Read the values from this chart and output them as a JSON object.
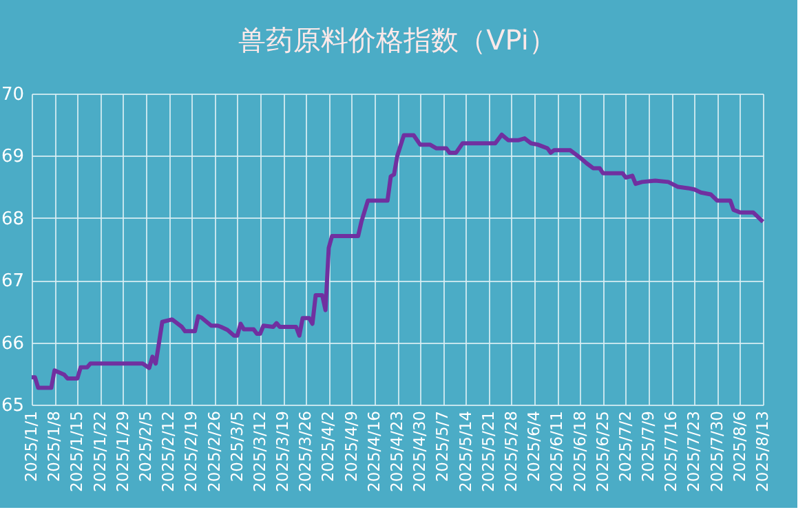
{
  "chart_data": {
    "type": "line",
    "title": "兽药原料价格指数（VPi）",
    "x": [
      "2025-01-01",
      "2025-01-02",
      "2025-01-03",
      "2025-01-07",
      "2025-01-08",
      "2025-01-11",
      "2025-01-12",
      "2025-01-15",
      "2025-01-16",
      "2025-01-18",
      "2025-01-19",
      "2025-02-04",
      "2025-02-06",
      "2025-02-07",
      "2025-02-08",
      "2025-02-10",
      "2025-02-13",
      "2025-02-16",
      "2025-02-17",
      "2025-02-20",
      "2025-02-21",
      "2025-02-22",
      "2025-02-25",
      "2025-02-27",
      "2025-02-28",
      "2025-03-02",
      "2025-03-04",
      "2025-03-05",
      "2025-03-06",
      "2025-03-07",
      "2025-03-10",
      "2025-03-11",
      "2025-03-12",
      "2025-03-13",
      "2025-03-16",
      "2025-03-17",
      "2025-03-18",
      "2025-03-23",
      "2025-03-24",
      "2025-03-25",
      "2025-03-27",
      "2025-03-28",
      "2025-03-29",
      "2025-03-31",
      "2025-04-01",
      "2025-04-02",
      "2025-04-03",
      "2025-04-11",
      "2025-04-12",
      "2025-04-14",
      "2025-04-20",
      "2025-04-21",
      "2025-04-22",
      "2025-04-23",
      "2025-04-25",
      "2025-04-28",
      "2025-04-30",
      "2025-05-03",
      "2025-05-05",
      "2025-05-08",
      "2025-05-09",
      "2025-05-11",
      "2025-05-13",
      "2025-05-23",
      "2025-05-25",
      "2025-05-27",
      "2025-05-30",
      "2025-06-01",
      "2025-06-03",
      "2025-06-05",
      "2025-06-08",
      "2025-06-09",
      "2025-06-10",
      "2025-06-15",
      "2025-06-18",
      "2025-06-20",
      "2025-06-22",
      "2025-06-24",
      "2025-06-25",
      "2025-07-01",
      "2025-07-02",
      "2025-07-04",
      "2025-07-05",
      "2025-07-07",
      "2025-07-11",
      "2025-07-15",
      "2025-07-18",
      "2025-07-21",
      "2025-07-23",
      "2025-07-25",
      "2025-07-28",
      "2025-07-30",
      "2025-08-03",
      "2025-08-04",
      "2025-08-06",
      "2025-08-10",
      "2025-08-11",
      "2025-08-13"
    ],
    "series": [
      {
        "color": "#7030a0",
        "values": [
          65.44,
          65.44,
          65.27,
          65.27,
          65.55,
          65.48,
          65.42,
          65.42,
          65.6,
          65.6,
          65.66,
          65.66,
          65.59,
          65.77,
          65.66,
          66.33,
          66.37,
          66.25,
          66.18,
          66.18,
          66.42,
          66.4,
          66.27,
          66.27,
          66.25,
          66.2,
          66.11,
          66.11,
          66.3,
          66.21,
          66.21,
          66.14,
          66.14,
          66.27,
          66.25,
          66.31,
          66.25,
          66.25,
          66.11,
          66.39,
          66.39,
          66.3,
          66.76,
          66.76,
          66.52,
          67.52,
          67.71,
          67.71,
          67.94,
          68.28,
          68.28,
          68.67,
          68.7,
          69.0,
          69.33,
          69.33,
          69.18,
          69.18,
          69.12,
          69.12,
          69.05,
          69.05,
          69.2,
          69.2,
          69.34,
          69.25,
          69.25,
          69.28,
          69.2,
          69.18,
          69.12,
          69.05,
          69.09,
          69.09,
          68.97,
          68.88,
          68.8,
          68.8,
          68.72,
          68.72,
          68.65,
          68.68,
          68.55,
          68.58,
          68.6,
          68.58,
          68.5,
          68.48,
          68.46,
          68.41,
          68.38,
          68.28,
          68.28,
          68.13,
          68.09,
          68.09,
          68.04,
          67.94
        ]
      }
    ],
    "xlim": [
      "2025-01-01",
      "2025-08-13"
    ],
    "xticks": [
      {
        "value": "2025-01-01",
        "label": "2025/1/1"
      },
      {
        "value": "2025-01-08",
        "label": "2025/1/8"
      },
      {
        "value": "2025-01-15",
        "label": "2025/1/15"
      },
      {
        "value": "2025-01-22",
        "label": "2025/1/22"
      },
      {
        "value": "2025-01-29",
        "label": "2025/1/29"
      },
      {
        "value": "2025-02-05",
        "label": "2025/2/5"
      },
      {
        "value": "2025-02-12",
        "label": "2025/2/12"
      },
      {
        "value": "2025-02-19",
        "label": "2025/2/19"
      },
      {
        "value": "2025-02-26",
        "label": "2025/2/26"
      },
      {
        "value": "2025-03-05",
        "label": "2025/3/5"
      },
      {
        "value": "2025-03-12",
        "label": "2025/3/12"
      },
      {
        "value": "2025-03-19",
        "label": "2025/3/19"
      },
      {
        "value": "2025-03-26",
        "label": "2025/3/26"
      },
      {
        "value": "2025-04-02",
        "label": "2025/4/2"
      },
      {
        "value": "2025-04-09",
        "label": "2025/4/9"
      },
      {
        "value": "2025-04-16",
        "label": "2025/4/16"
      },
      {
        "value": "2025-04-23",
        "label": "2025/4/23"
      },
      {
        "value": "2025-04-30",
        "label": "2025/4/30"
      },
      {
        "value": "2025-05-07",
        "label": "2025/5/7"
      },
      {
        "value": "2025-05-14",
        "label": "2025/5/14"
      },
      {
        "value": "2025-05-21",
        "label": "2025/5/21"
      },
      {
        "value": "2025-05-28",
        "label": "2025/5/28"
      },
      {
        "value": "2025-06-04",
        "label": "2025/6/4"
      },
      {
        "value": "2025-06-11",
        "label": "2025/6/11"
      },
      {
        "value": "2025-06-18",
        "label": "2025/6/18"
      },
      {
        "value": "2025-06-25",
        "label": "2025/6/25"
      },
      {
        "value": "2025-07-02",
        "label": "2025/7/2"
      },
      {
        "value": "2025-07-09",
        "label": "2025/7/9"
      },
      {
        "value": "2025-07-16",
        "label": "2025/7/16"
      },
      {
        "value": "2025-07-23",
        "label": "2025/7/23"
      },
      {
        "value": "2025-07-30",
        "label": "2025/7/30"
      },
      {
        "value": "2025-08-06",
        "label": "2025/8/6"
      },
      {
        "value": "2025-08-13",
        "label": "2025/8/13"
      }
    ],
    "ylim": [
      65,
      70
    ],
    "yticks": [
      65,
      66,
      67,
      68,
      69,
      70
    ],
    "grid": true,
    "marker": "none",
    "line_style": "solid"
  }
}
